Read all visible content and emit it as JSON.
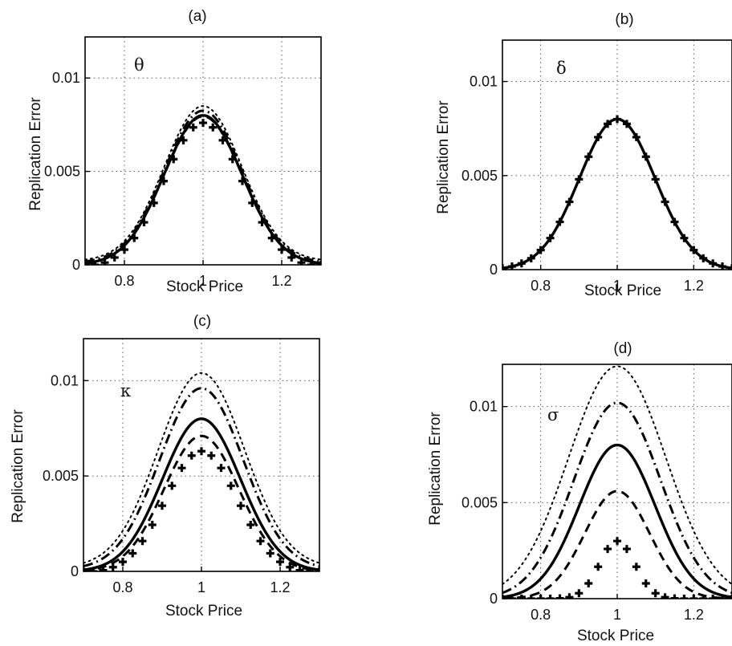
{
  "chart_data": [
    {
      "type": "line",
      "title": "(a)",
      "parameter_label": "θ",
      "xlabel": "Stock Price",
      "ylabel": "Replication Error",
      "xlim": [
        0.7,
        1.3
      ],
      "ylim": [
        0,
        0.0122
      ],
      "xticks": [
        {
          "value": 0.8,
          "label": "0.8"
        },
        {
          "value": 1.0,
          "label": "1"
        },
        {
          "value": 1.2,
          "label": "1.2"
        }
      ],
      "yticks": [
        {
          "value": 0,
          "label": "0"
        },
        {
          "value": 0.005,
          "label": "0.005"
        },
        {
          "value": 0.01,
          "label": "0.01"
        }
      ],
      "grid": true,
      "series": [
        {
          "style": "dotted",
          "peak": 0.0083,
          "width": 0.14,
          "offset": 0.0002
        },
        {
          "style": "dashdot",
          "peak": 0.00815,
          "width": 0.14,
          "offset": 0.0001
        },
        {
          "style": "solid",
          "peak": 0.008,
          "width": 0.14,
          "offset": 0
        },
        {
          "style": "dashed",
          "peak": 0.00795,
          "width": 0.14,
          "offset": 0
        },
        {
          "style": "plus",
          "peak": 0.0078,
          "width": 0.14,
          "offset": -0.0002
        }
      ]
    },
    {
      "type": "line",
      "title": "(b)",
      "parameter_label": "δ",
      "xlabel": "Stock Price",
      "ylabel": "Replication Error",
      "xlim": [
        0.7,
        1.3
      ],
      "ylim": [
        0,
        0.0122
      ],
      "xticks": [
        {
          "value": 0.8,
          "label": "0.8"
        },
        {
          "value": 1.0,
          "label": "1"
        },
        {
          "value": 1.2,
          "label": "1.2"
        }
      ],
      "yticks": [
        {
          "value": 0,
          "label": "0"
        },
        {
          "value": 0.005,
          "label": "0.005"
        },
        {
          "value": 0.01,
          "label": "0.01"
        }
      ],
      "grid": true,
      "series": [
        {
          "style": "solid",
          "peak": 0.008,
          "width": 0.14,
          "offset": 0
        },
        {
          "style": "plus",
          "peak": 0.008,
          "width": 0.14,
          "offset": 0
        }
      ]
    },
    {
      "type": "line",
      "title": "(c)",
      "parameter_label": "κ",
      "xlabel": "Stock Price",
      "ylabel": "Replication Error",
      "xlim": [
        0.7,
        1.3
      ],
      "ylim": [
        0,
        0.0122
      ],
      "xticks": [
        {
          "value": 0.8,
          "label": "0.8"
        },
        {
          "value": 1.0,
          "label": "1"
        },
        {
          "value": 1.2,
          "label": "1.2"
        }
      ],
      "yticks": [
        {
          "value": 0,
          "label": "0"
        },
        {
          "value": 0.005,
          "label": "0.005"
        },
        {
          "value": 0.01,
          "label": "0.01"
        }
      ],
      "grid": true,
      "series": [
        {
          "style": "dotted",
          "peak": 0.0102,
          "width": 0.155,
          "offset": 0.0002
        },
        {
          "style": "dashdot",
          "peak": 0.0095,
          "width": 0.15,
          "offset": 0.0001
        },
        {
          "style": "solid",
          "peak": 0.008,
          "width": 0.14,
          "offset": 0
        },
        {
          "style": "dashed",
          "peak": 0.0071,
          "width": 0.135,
          "offset": 0
        },
        {
          "style": "plus",
          "peak": 0.0064,
          "width": 0.13,
          "offset": -0.0001
        }
      ]
    },
    {
      "type": "line",
      "title": "(d)",
      "parameter_label": "σ",
      "xlabel": "Stock Price",
      "ylabel": "Replication Error",
      "xlim": [
        0.7,
        1.3
      ],
      "ylim": [
        0,
        0.0122
      ],
      "xticks": [
        {
          "value": 0.8,
          "label": "0.8"
        },
        {
          "value": 1.0,
          "label": "1"
        },
        {
          "value": 1.2,
          "label": "1.2"
        }
      ],
      "yticks": [
        {
          "value": 0,
          "label": "0"
        },
        {
          "value": 0.005,
          "label": "0.005"
        },
        {
          "value": 0.01,
          "label": "0.01"
        }
      ],
      "grid": true,
      "series": [
        {
          "style": "dotted",
          "peak": 0.0121,
          "width": 0.18,
          "offset": 0
        },
        {
          "style": "dashdot",
          "peak": 0.0102,
          "width": 0.16,
          "offset": 0
        },
        {
          "style": "solid",
          "peak": 0.008,
          "width": 0.14,
          "offset": 0
        },
        {
          "style": "dashed",
          "peak": 0.0056,
          "width": 0.12,
          "offset": 0
        },
        {
          "style": "plus",
          "peak": 0.003,
          "width": 0.065,
          "offset": 0
        }
      ]
    }
  ]
}
